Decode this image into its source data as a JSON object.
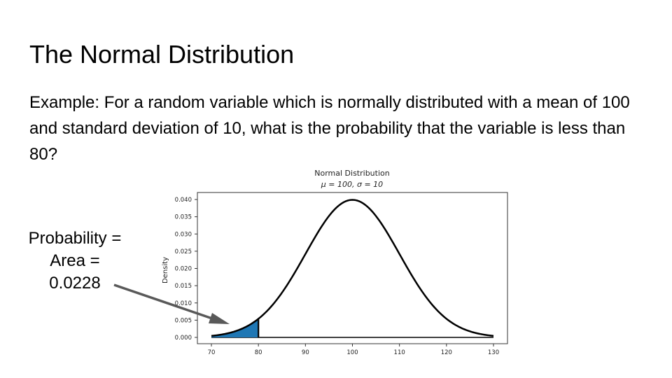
{
  "slide": {
    "title": "The Normal Distribution",
    "body": "Example: For a random variable which is normally distributed with a mean of 100 and standard deviation of 10, what is the probability that the variable is less than 80?",
    "callout_lines": [
      "Probability =",
      "Area =",
      "0.0228"
    ]
  },
  "chart_data": {
    "type": "line",
    "title": "Normal Distribution",
    "subtitle": "μ = 100, σ = 10",
    "xlabel": "",
    "ylabel": "Density",
    "mean": 100,
    "sd": 10,
    "xlim": [
      70,
      130
    ],
    "ylim": [
      0,
      0.04
    ],
    "x_ticks": [
      70,
      80,
      90,
      100,
      110,
      120,
      130
    ],
    "y_ticks": [
      "0.000",
      "0.005",
      "0.010",
      "0.015",
      "0.020",
      "0.025",
      "0.030",
      "0.035",
      "0.040"
    ],
    "shaded_region": {
      "from": 70,
      "to": 80,
      "area": 0.0228
    },
    "grid": false,
    "colors": {
      "curve": "#000000",
      "shade": "#1f77b4",
      "arrow": "#595959"
    }
  }
}
